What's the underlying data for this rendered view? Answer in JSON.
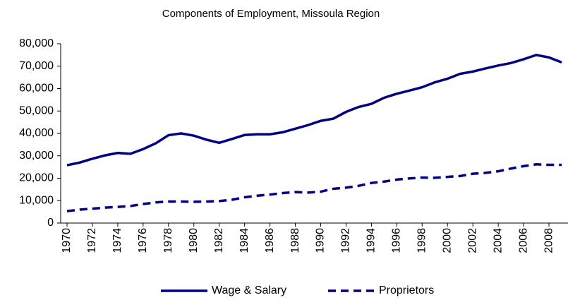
{
  "chart_data": {
    "type": "line",
    "title": "Components of Employment, Missoula Region",
    "x": [
      1970,
      1971,
      1972,
      1973,
      1974,
      1975,
      1976,
      1977,
      1978,
      1979,
      1980,
      1981,
      1982,
      1983,
      1984,
      1985,
      1986,
      1987,
      1988,
      1989,
      1990,
      1991,
      1992,
      1993,
      1994,
      1995,
      1996,
      1997,
      1998,
      1999,
      2000,
      2001,
      2002,
      2003,
      2004,
      2005,
      2006,
      2007,
      2008,
      2009
    ],
    "xlim": [
      1969.5,
      2009.5
    ],
    "xticks": [
      1970,
      1972,
      1974,
      1976,
      1978,
      1980,
      1982,
      1984,
      1986,
      1988,
      1990,
      1992,
      1994,
      1996,
      1998,
      2000,
      2002,
      2004,
      2006,
      2008
    ],
    "ylim": [
      0,
      80000
    ],
    "yticks": [
      0,
      {
        "value": 10000,
        "label": "10,000"
      },
      {
        "value": 20000,
        "label": "20,000"
      },
      {
        "value": 30000,
        "label": "30,000"
      },
      {
        "value": 40000,
        "label": "40,000"
      },
      {
        "value": 50000,
        "label": "50,000"
      },
      {
        "value": 60000,
        "label": "60,000"
      },
      {
        "value": 70000,
        "label": "70,000"
      },
      {
        "value": 80000,
        "label": "80,000"
      }
    ],
    "series": [
      {
        "name": "Wage & Salary",
        "color": "#000080",
        "dash": "solid",
        "values": [
          25800,
          27000,
          28700,
          30200,
          31300,
          30900,
          33000,
          35600,
          39200,
          40000,
          39000,
          37200,
          35800,
          37500,
          39300,
          39600,
          39600,
          40500,
          42100,
          43700,
          45600,
          46600,
          49600,
          51800,
          53200,
          55900,
          57700,
          59100,
          60600,
          62800,
          64400,
          66600,
          67600,
          69000,
          70300,
          71400,
          73100,
          75000,
          73900,
          71700
        ]
      },
      {
        "name": "Proprietors",
        "color": "#000080",
        "dash": "dashed",
        "values": [
          5300,
          6000,
          6400,
          6900,
          7200,
          7600,
          8500,
          9200,
          9600,
          9600,
          9500,
          9600,
          9800,
          10400,
          11500,
          12200,
          12700,
          13400,
          13800,
          13600,
          14000,
          15300,
          15800,
          16600,
          17900,
          18500,
          19400,
          19900,
          20300,
          20200,
          20600,
          21000,
          22000,
          22400,
          23100,
          24300,
          25400,
          26200,
          26000,
          26000
        ]
      }
    ],
    "legend": "bottom"
  }
}
